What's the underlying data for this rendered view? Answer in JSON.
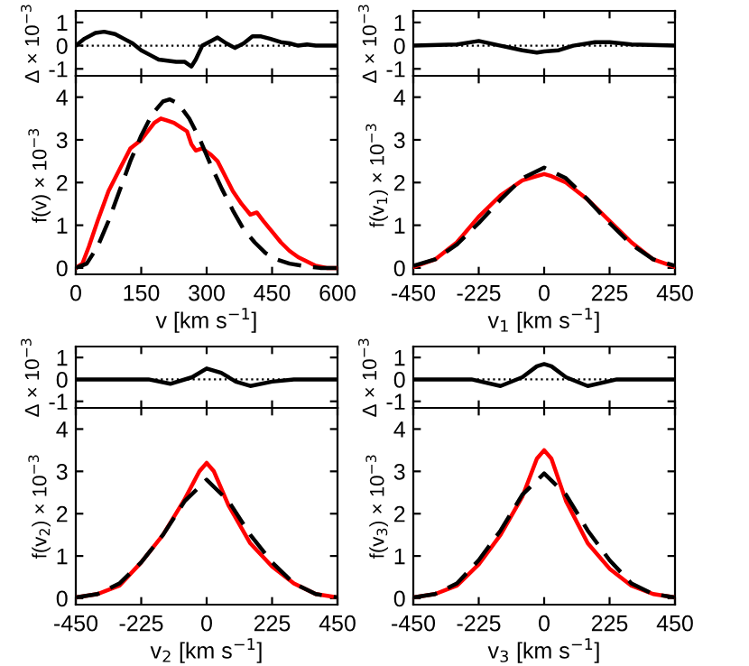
{
  "chart_data": [
    {
      "type": "line",
      "ylabel": "Δ × 10$^{−3}$",
      "x": [
        0,
        20,
        45,
        65,
        90,
        110,
        130,
        150,
        170,
        190,
        210,
        230,
        250,
        265,
        275,
        290,
        310,
        325,
        345,
        365,
        385,
        405,
        425,
        445,
        470,
        490,
        510,
        530,
        550,
        600
      ],
      "xlim": [
        0,
        600
      ],
      "ylim": [
        -1.3,
        1.5
      ],
      "yticks": [
        -1,
        0,
        1
      ],
      "tick_labels": "y",
      "grid": false,
      "legend": false,
      "line_style": "solid",
      "ref_lines": [
        {
          "axis": "y",
          "value": 0,
          "color": "#000000",
          "line_style": "dotted"
        }
      ],
      "series": [
        {
          "color": "#000000",
          "values": [
            0,
            0.3,
            0.55,
            0.6,
            0.5,
            0.3,
            0.1,
            -0.2,
            -0.4,
            -0.6,
            -0.65,
            -0.7,
            -0.7,
            -0.9,
            -0.6,
            0,
            0.2,
            0.35,
            0.1,
            -0.1,
            0.1,
            0.4,
            0.4,
            0.3,
            0.15,
            0.1,
            0,
            0.05,
            0,
            0
          ]
        }
      ]
    },
    {
      "type": "line",
      "xlabel": "v [km s$^{−1}$]",
      "ylabel": "f(v) × 10$^{−3}$",
      "xlim": [
        0,
        600
      ],
      "xticks": [
        0,
        150,
        300,
        450,
        600
      ],
      "ylim": [
        -0.15,
        4.5
      ],
      "yticks": [
        0,
        1,
        2,
        3,
        4
      ],
      "grid": false,
      "legend": false,
      "series": [
        {
          "color": "#ff0000",
          "line_style": "solid",
          "x": [
            0,
            15,
            30,
            50,
            75,
            100,
            125,
            150,
            165,
            180,
            195,
            210,
            225,
            240,
            255,
            265,
            275,
            290,
            310,
            325,
            340,
            360,
            380,
            400,
            415,
            430,
            450,
            470,
            490,
            510,
            530,
            550,
            575,
            600
          ],
          "values": [
            0,
            0.1,
            0.5,
            1.1,
            1.8,
            2.3,
            2.8,
            3.0,
            3.2,
            3.4,
            3.5,
            3.45,
            3.4,
            3.3,
            3.2,
            2.9,
            2.75,
            2.8,
            2.65,
            2.5,
            2.2,
            1.8,
            1.5,
            1.25,
            1.3,
            1.1,
            0.85,
            0.6,
            0.4,
            0.25,
            0.15,
            0.05,
            0,
            0
          ]
        },
        {
          "color": "#000000",
          "line_style": "dashed",
          "x": [
            0,
            25,
            50,
            75,
            100,
            125,
            150,
            175,
            200,
            215,
            235,
            260,
            285,
            310,
            335,
            360,
            385,
            410,
            435,
            460,
            490,
            520,
            560,
            600
          ],
          "values": [
            0,
            0.1,
            0.5,
            1.1,
            1.8,
            2.5,
            3.1,
            3.6,
            3.9,
            3.95,
            3.85,
            3.5,
            3.0,
            2.4,
            1.85,
            1.35,
            0.9,
            0.6,
            0.35,
            0.2,
            0.1,
            0.05,
            0,
            0
          ]
        }
      ]
    },
    {
      "type": "line",
      "ylabel": "Δ × 10$^{−3}$",
      "x": [
        -450,
        -300,
        -225,
        -150,
        -75,
        -25,
        0,
        50,
        100,
        175,
        225,
        300,
        450
      ],
      "xlim": [
        -450,
        450
      ],
      "ylim": [
        -1.3,
        1.5
      ],
      "yticks": [
        -1,
        0,
        1
      ],
      "tick_labels": "y",
      "grid": false,
      "legend": false,
      "line_style": "solid",
      "ref_lines": [
        {
          "axis": "y",
          "value": 0,
          "color": "#000000",
          "line_style": "dotted"
        }
      ],
      "series": [
        {
          "color": "#000000",
          "values": [
            0,
            0.05,
            0.2,
            0,
            -0.2,
            -0.3,
            -0.25,
            -0.2,
            0,
            0.15,
            0.15,
            0.05,
            0
          ]
        }
      ]
    },
    {
      "type": "line",
      "xlabel": "v$_{1}$ [km s$^{−1}$]",
      "ylabel": "f(v$_{1}$) × 10$^{−3}$",
      "xlim": [
        -450,
        450
      ],
      "xticks": [
        -450,
        -225,
        0,
        225,
        450
      ],
      "ylim": [
        -0.15,
        4.5
      ],
      "yticks": [
        0,
        1,
        2,
        3,
        4
      ],
      "grid": false,
      "legend": false,
      "series": [
        {
          "color": "#ff0000",
          "line_style": "solid",
          "x": [
            -450,
            -375,
            -300,
            -225,
            -150,
            -75,
            -25,
            0,
            25,
            75,
            150,
            225,
            300,
            375,
            450
          ],
          "values": [
            0.02,
            0.2,
            0.6,
            1.2,
            1.7,
            2.05,
            2.15,
            2.2,
            2.15,
            2.0,
            1.6,
            1.1,
            0.6,
            0.2,
            0.02
          ]
        },
        {
          "color": "#000000",
          "line_style": "dashed",
          "x": [
            -450,
            -375,
            -300,
            -225,
            -150,
            -75,
            0,
            75,
            150,
            225,
            300,
            375,
            450
          ],
          "values": [
            0.05,
            0.2,
            0.55,
            1.05,
            1.6,
            2.1,
            2.35,
            2.1,
            1.6,
            1.05,
            0.55,
            0.2,
            0.05
          ]
        }
      ]
    },
    {
      "type": "line",
      "ylabel": "Δ × 10$^{−3}$",
      "x": [
        -450,
        -200,
        -125,
        -50,
        0,
        50,
        100,
        150,
        225,
        300,
        450
      ],
      "xlim": [
        -450,
        450
      ],
      "ylim": [
        -1.3,
        1.5
      ],
      "yticks": [
        -1,
        0,
        1
      ],
      "tick_labels": "y",
      "grid": false,
      "legend": false,
      "line_style": "solid",
      "ref_lines": [
        {
          "axis": "y",
          "value": 0,
          "color": "#000000",
          "line_style": "dotted"
        }
      ],
      "series": [
        {
          "color": "#000000",
          "values": [
            0,
            0,
            -0.2,
            0.1,
            0.5,
            0.3,
            -0.1,
            -0.3,
            -0.1,
            0,
            0
          ]
        }
      ]
    },
    {
      "type": "line",
      "xlabel": "v$_{2}$ [km s$^{−1}$]",
      "ylabel": "f(v$_{2}$) × 10$^{−3}$",
      "xlim": [
        -450,
        450
      ],
      "xticks": [
        -450,
        -225,
        0,
        225,
        450
      ],
      "ylim": [
        -0.15,
        4.5
      ],
      "yticks": [
        0,
        1,
        2,
        3,
        4
      ],
      "grid": false,
      "legend": false,
      "series": [
        {
          "color": "#ff0000",
          "line_style": "solid",
          "x": [
            -450,
            -375,
            -300,
            -225,
            -150,
            -75,
            -25,
            0,
            25,
            75,
            150,
            225,
            300,
            375,
            450
          ],
          "values": [
            0.02,
            0.1,
            0.3,
            0.85,
            1.5,
            2.35,
            3.0,
            3.2,
            3.0,
            2.2,
            1.3,
            0.75,
            0.35,
            0.1,
            0.02
          ]
        },
        {
          "color": "#000000",
          "line_style": "dashed",
          "x": [
            -450,
            -375,
            -300,
            -225,
            -150,
            -75,
            0,
            75,
            150,
            225,
            300,
            375,
            450
          ],
          "values": [
            0.02,
            0.1,
            0.35,
            0.85,
            1.5,
            2.3,
            2.8,
            2.3,
            1.5,
            0.85,
            0.35,
            0.1,
            0.02
          ]
        }
      ]
    },
    {
      "type": "line",
      "ylabel": "Δ × 10$^{−3}$",
      "x": [
        -450,
        -250,
        -150,
        -75,
        -25,
        0,
        25,
        75,
        150,
        250,
        450
      ],
      "xlim": [
        -450,
        450
      ],
      "ylim": [
        -1.3,
        1.5
      ],
      "yticks": [
        -1,
        0,
        1
      ],
      "tick_labels": "y",
      "grid": false,
      "legend": false,
      "line_style": "solid",
      "ref_lines": [
        {
          "axis": "y",
          "value": 0,
          "color": "#000000",
          "line_style": "dotted"
        }
      ],
      "series": [
        {
          "color": "#000000",
          "values": [
            0,
            0,
            -0.3,
            0.1,
            0.6,
            0.7,
            0.6,
            0.1,
            -0.3,
            0,
            0
          ]
        }
      ]
    },
    {
      "type": "line",
      "xlabel": "v$_{3}$ [km s$^{−1}$]",
      "ylabel": "f(v$_{3}$) × 10$^{−3}$",
      "xlim": [
        -450,
        450
      ],
      "xticks": [
        -450,
        -225,
        0,
        225,
        450
      ],
      "ylim": [
        -0.15,
        4.5
      ],
      "yticks": [
        0,
        1,
        2,
        3,
        4
      ],
      "grid": false,
      "legend": false,
      "series": [
        {
          "color": "#ff0000",
          "line_style": "solid",
          "x": [
            -450,
            -375,
            -300,
            -225,
            -150,
            -75,
            -25,
            0,
            25,
            75,
            150,
            225,
            300,
            375,
            450
          ],
          "values": [
            0.02,
            0.1,
            0.3,
            0.8,
            1.5,
            2.4,
            3.3,
            3.5,
            3.3,
            2.3,
            1.3,
            0.7,
            0.3,
            0.1,
            0.02
          ]
        },
        {
          "color": "#000000",
          "line_style": "dashed",
          "x": [
            -450,
            -375,
            -300,
            -225,
            -150,
            -75,
            0,
            75,
            150,
            225,
            300,
            375,
            450
          ],
          "values": [
            0.02,
            0.1,
            0.35,
            0.9,
            1.6,
            2.45,
            2.95,
            2.45,
            1.6,
            0.9,
            0.35,
            0.1,
            0.02
          ]
        }
      ]
    }
  ]
}
